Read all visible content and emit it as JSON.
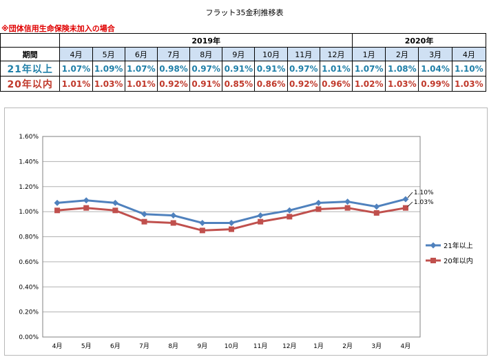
{
  "title": "フラット35金利推移表",
  "note": "※団体信用生命保険未加入の場合",
  "table": {
    "years": [
      {
        "label": "2019年",
        "span": 9
      },
      {
        "label": "2020年",
        "span": 4
      }
    ],
    "period_label": "期間",
    "months": [
      "4月",
      "5月",
      "6月",
      "7月",
      "8月",
      "9月",
      "10月",
      "11月",
      "12月",
      "1月",
      "2月",
      "3月",
      "4月"
    ],
    "rows": [
      {
        "label": "21年以上",
        "values": [
          "1.07%",
          "1.09%",
          "1.07%",
          "0.98%",
          "0.97%",
          "0.91%",
          "0.91%",
          "0.97%",
          "1.01%",
          "1.07%",
          "1.08%",
          "1.04%",
          "1.10%"
        ]
      },
      {
        "label": "20年以内",
        "values": [
          "1.01%",
          "1.03%",
          "1.01%",
          "0.92%",
          "0.91%",
          "0.85%",
          "0.86%",
          "0.92%",
          "0.96%",
          "1.02%",
          "1.03%",
          "0.99%",
          "1.03%"
        ]
      }
    ]
  },
  "chart_data": {
    "type": "line",
    "categories": [
      "4月",
      "5月",
      "6月",
      "7月",
      "8月",
      "9月",
      "10月",
      "11月",
      "12月",
      "1月",
      "2月",
      "3月",
      "4月"
    ],
    "series": [
      {
        "name": "21年以上",
        "values": [
          1.07,
          1.09,
          1.07,
          0.98,
          0.97,
          0.91,
          0.91,
          0.97,
          1.01,
          1.07,
          1.08,
          1.04,
          1.1
        ],
        "color": "#4f81bd",
        "marker": "diamond",
        "end_label": "1.10%"
      },
      {
        "name": "20年以内",
        "values": [
          1.01,
          1.03,
          1.01,
          0.92,
          0.91,
          0.85,
          0.86,
          0.92,
          0.96,
          1.02,
          1.03,
          0.99,
          1.03
        ],
        "color": "#c0504d",
        "marker": "square",
        "end_label": "1.03%"
      }
    ],
    "ylim": [
      0,
      1.6
    ],
    "yticks": [
      "0.00%",
      "0.20%",
      "0.40%",
      "0.60%",
      "0.80%",
      "1.00%",
      "1.20%",
      "1.40%",
      "1.60%"
    ],
    "grid": true,
    "legend": "right"
  }
}
